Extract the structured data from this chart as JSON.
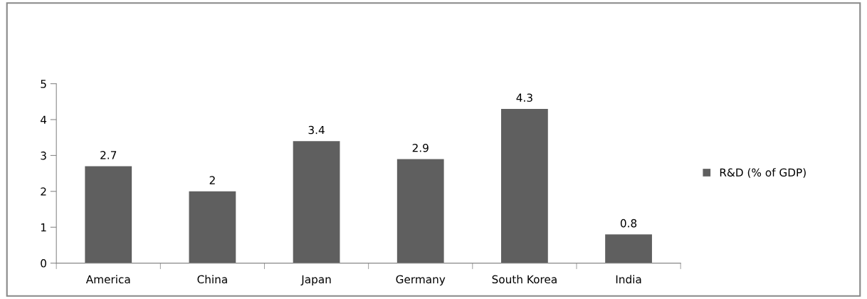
{
  "chart_data": {
    "type": "bar",
    "categories": [
      "America",
      "China",
      "Japan",
      "Germany",
      "South Korea",
      "India"
    ],
    "series": [
      {
        "name": "R&D (% of GDP)",
        "color": "#5f5f5f",
        "values": [
          2.7,
          2,
          3.4,
          2.9,
          4.3,
          0.8
        ]
      }
    ],
    "ylim": [
      0,
      5
    ],
    "yticks": [
      0,
      1,
      2,
      3,
      4,
      5
    ],
    "data_labels": true,
    "legend": "right",
    "grid": false
  }
}
